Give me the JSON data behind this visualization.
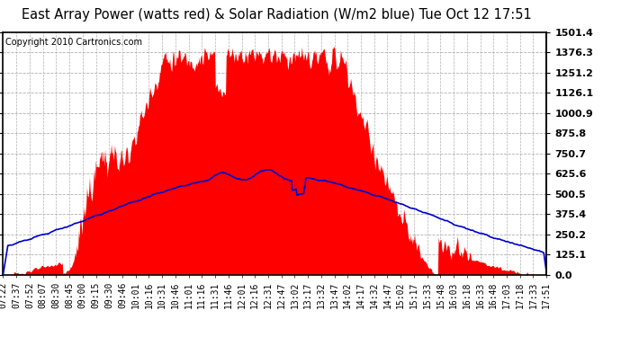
{
  "title": "East Array Power (watts red) & Solar Radiation (W/m2 blue) Tue Oct 12 17:51",
  "copyright": "Copyright 2010 Cartronics.com",
  "ylabel_right_ticks": [
    0.0,
    125.1,
    250.2,
    375.4,
    500.5,
    625.6,
    750.7,
    875.8,
    1000.9,
    1126.1,
    1251.2,
    1376.3,
    1501.4
  ],
  "ymax": 1501.4,
  "ymin": 0.0,
  "background_color": "#ffffff",
  "plot_bg_color": "#ffffff",
  "grid_color": "#b0b0b0",
  "title_fontsize": 10.5,
  "copyright_fontsize": 7,
  "tick_fontsize": 7,
  "x_labels": [
    "07:22",
    "07:37",
    "07:52",
    "08:07",
    "08:30",
    "08:45",
    "09:00",
    "09:15",
    "09:30",
    "09:46",
    "10:01",
    "10:16",
    "10:31",
    "10:46",
    "11:01",
    "11:16",
    "11:31",
    "11:46",
    "12:01",
    "12:16",
    "12:31",
    "12:47",
    "13:02",
    "13:17",
    "13:32",
    "13:47",
    "14:02",
    "14:17",
    "14:32",
    "14:47",
    "15:02",
    "15:17",
    "15:33",
    "15:48",
    "16:03",
    "16:18",
    "16:33",
    "16:48",
    "17:03",
    "17:18",
    "17:33",
    "17:51"
  ],
  "red_color": "#ff0000",
  "blue_color": "#0000cc",
  "border_color": "#000000"
}
